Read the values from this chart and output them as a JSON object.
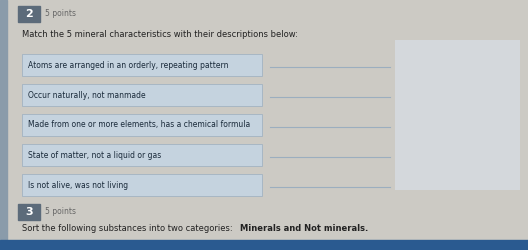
{
  "bg_color": "#cccac4",
  "left_panel_color": "#c5d3df",
  "left_panel_edge": "#9baebf",
  "right_box_color": "#d4d8dc",
  "right_line_color": "#9baebf",
  "question_num_bg": "#5c6b7a",
  "question_num_color": "#ffffff",
  "question_num_2": "2",
  "question_num_3": "3",
  "points_text_2": "5 points",
  "points_text_3": "5 points",
  "instruction_2": "Match the 5 mineral characteristics with their descriptions below:",
  "instruction_3": "Sort the following substances into two categories: ",
  "instruction_3_bold": "Minerals and Not minerals.",
  "items": [
    "Atoms are arranged in an orderly, repeating pattern",
    "Occur naturally, not manmade",
    "Made from one or more elements, has a chemical formula",
    "State of matter, not a liquid or gas",
    "Is not alive, was not living"
  ],
  "sidebar_color": "#8a9baa",
  "bottom_bar_color": "#2a5a90",
  "fig_w": 5.28,
  "fig_h": 2.5,
  "dpi": 100
}
